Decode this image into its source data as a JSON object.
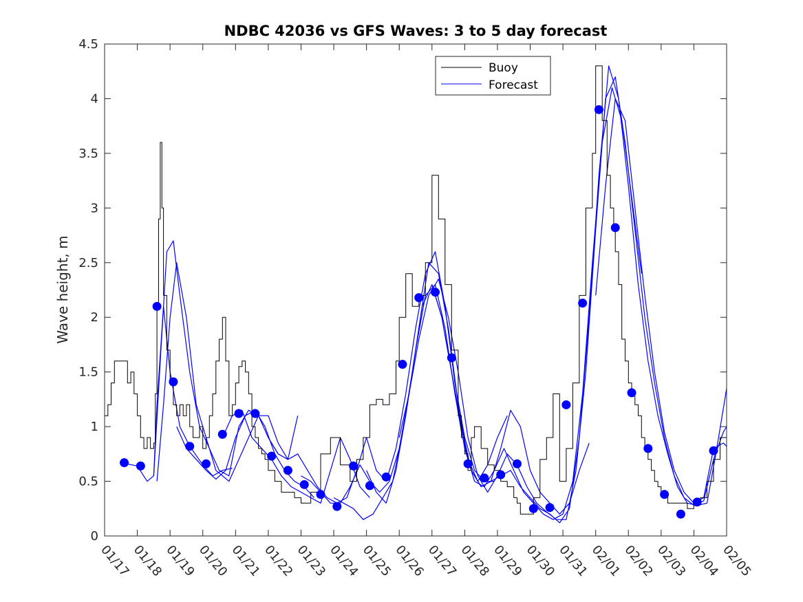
{
  "chart_data": {
    "type": "line",
    "title": "NDBC 42036 vs GFS Waves: 3 to 5 day forecast",
    "ylabel": "Wave height, m",
    "xlabel": "",
    "xlim": [
      0,
      19
    ],
    "ylim": [
      0,
      4.5
    ],
    "yticks": [
      0,
      0.5,
      1,
      1.5,
      2,
      2.5,
      3,
      3.5,
      4,
      4.5
    ],
    "ytick_labels": [
      "0",
      "0.5",
      "1",
      "1.5",
      "2",
      "2.5",
      "3",
      "3.5",
      "4",
      "4.5"
    ],
    "xticks": [
      "01/17",
      "01/18",
      "01/19",
      "01/20",
      "01/21",
      "01/22",
      "01/23",
      "01/24",
      "01/25",
      "01/26",
      "01/27",
      "01/28",
      "01/29",
      "01/30",
      "01/31",
      "02/01",
      "02/02",
      "02/03",
      "02/04",
      "02/05"
    ],
    "legend": {
      "position": "top-center",
      "entries": [
        "Buoy",
        "Forecast"
      ]
    },
    "colors": {
      "buoy": "#000000",
      "forecast": "#0000ff",
      "axis": "#262626"
    },
    "buoy": {
      "name": "Buoy",
      "x": [
        0,
        0.1,
        0.2,
        0.3,
        0.5,
        0.7,
        0.8,
        0.9,
        1.0,
        1.1,
        1.2,
        1.3,
        1.4,
        1.5,
        1.55,
        1.6,
        1.65,
        1.7,
        1.75,
        1.8,
        1.9,
        2.0,
        2.1,
        2.2,
        2.3,
        2.4,
        2.5,
        2.6,
        2.7,
        2.8,
        2.9,
        3.0,
        3.1,
        3.2,
        3.3,
        3.4,
        3.5,
        3.6,
        3.7,
        3.8,
        3.9,
        4.0,
        4.1,
        4.2,
        4.3,
        4.4,
        4.5,
        4.6,
        4.7,
        4.8,
        4.9,
        5.0,
        5.2,
        5.4,
        5.6,
        5.8,
        6.0,
        6.3,
        6.6,
        6.9,
        7.2,
        7.5,
        7.7,
        7.9,
        8.1,
        8.3,
        8.5,
        8.7,
        8.9,
        9.0,
        9.2,
        9.4,
        9.6,
        9.8,
        10.0,
        10.2,
        10.4,
        10.6,
        10.8,
        10.9,
        11.0,
        11.1,
        11.2,
        11.3,
        11.5,
        11.7,
        11.9,
        12.1,
        12.3,
        12.5,
        12.6,
        12.7,
        12.9,
        13.1,
        13.3,
        13.5,
        13.7,
        13.9,
        14.1,
        14.3,
        14.5,
        14.7,
        14.9,
        15.0,
        15.2,
        15.35,
        15.45,
        15.55,
        15.6,
        15.7,
        15.8,
        15.9,
        16.0,
        16.1,
        16.2,
        16.3,
        16.4,
        16.5,
        16.6,
        16.7,
        16.8,
        16.9,
        17.0,
        17.2,
        17.4,
        17.6,
        17.8,
        18.0,
        18.2,
        18.4,
        18.6,
        18.8,
        19.0
      ],
      "y": [
        1.1,
        1.2,
        1.4,
        1.6,
        1.6,
        1.4,
        1.5,
        1.3,
        1.1,
        0.9,
        0.8,
        0.9,
        0.8,
        0.85,
        1.3,
        2.1,
        2.9,
        3.6,
        3.0,
        2.2,
        1.7,
        1.4,
        1.2,
        1.1,
        1.2,
        1.1,
        1.2,
        1.0,
        0.9,
        0.9,
        1.0,
        0.8,
        0.9,
        1.1,
        1.3,
        1.6,
        1.8,
        2.0,
        1.6,
        1.1,
        1.2,
        1.4,
        1.55,
        1.6,
        1.5,
        1.3,
        1.0,
        0.9,
        0.8,
        0.75,
        0.7,
        0.6,
        0.5,
        0.4,
        0.4,
        0.35,
        0.3,
        0.4,
        0.75,
        0.9,
        0.65,
        0.5,
        0.7,
        0.9,
        1.2,
        1.25,
        1.2,
        1.3,
        1.6,
        2.0,
        2.4,
        2.1,
        2.2,
        2.5,
        3.3,
        2.9,
        2.3,
        1.7,
        1.1,
        0.9,
        0.75,
        0.6,
        0.9,
        1.0,
        0.8,
        0.65,
        0.6,
        0.5,
        0.45,
        0.35,
        0.3,
        0.2,
        0.2,
        0.35,
        0.7,
        0.9,
        1.3,
        0.5,
        0.8,
        1.4,
        2.2,
        3.0,
        3.5,
        4.3,
        3.8,
        3.3,
        3.0,
        2.8,
        2.6,
        2.3,
        1.8,
        1.6,
        1.4,
        1.3,
        1.2,
        1.1,
        0.9,
        0.8,
        0.7,
        0.6,
        0.5,
        0.45,
        0.4,
        0.3,
        0.3,
        0.3,
        0.25,
        0.3,
        0.35,
        0.5,
        0.7,
        0.9,
        1.0
      ]
    },
    "forecast_runs": [
      {
        "x": [
          0.5,
          1.0,
          1.3,
          1.5,
          1.6,
          1.8,
          2.0,
          2.3,
          2.6,
          3.0,
          3.3,
          3.6,
          3.9
        ],
        "y": [
          0.67,
          0.64,
          0.5,
          0.55,
          1.2,
          2.1,
          1.5,
          1.0,
          0.82,
          0.65,
          0.55,
          0.6,
          0.62
        ]
      },
      {
        "x": [
          1.5,
          1.7,
          1.9,
          2.1,
          2.3,
          2.6,
          2.9,
          3.2,
          3.5,
          3.8,
          4.1,
          4.4,
          4.7,
          5.0,
          5.3
        ],
        "y": [
          0.55,
          1.6,
          2.6,
          2.7,
          2.2,
          1.5,
          1.0,
          0.8,
          0.6,
          0.55,
          1.0,
          1.15,
          1.1,
          0.9,
          0.75
        ]
      },
      {
        "x": [
          1.6,
          1.8,
          2.0,
          2.2,
          2.5,
          2.8,
          3.1,
          3.4,
          3.8,
          4.1,
          4.4,
          4.7,
          5.0,
          5.3,
          5.6,
          5.9
        ],
        "y": [
          0.5,
          1.2,
          2.0,
          2.5,
          2.0,
          1.2,
          0.9,
          0.6,
          0.5,
          0.7,
          0.9,
          1.1,
          1.1,
          0.85,
          0.7,
          1.1
        ]
      },
      {
        "x": [
          2.2,
          2.5,
          2.8,
          3.1,
          3.4,
          3.7,
          4.0,
          4.3,
          4.6,
          4.9,
          5.2,
          5.5,
          5.8,
          6.1,
          6.4
        ],
        "y": [
          1.0,
          0.8,
          0.7,
          0.6,
          0.52,
          0.6,
          0.9,
          1.1,
          1.15,
          1.0,
          0.75,
          0.6,
          0.5,
          0.45,
          0.35
        ]
      },
      {
        "x": [
          3.6,
          3.9,
          4.2,
          4.5,
          4.8,
          5.1,
          5.4,
          5.7,
          6.0,
          6.3,
          6.6,
          6.9,
          7.2,
          7.5,
          7.8,
          8.1
        ],
        "y": [
          0.9,
          1.1,
          1.15,
          0.9,
          0.8,
          0.7,
          0.55,
          0.45,
          0.4,
          0.35,
          0.3,
          0.6,
          0.9,
          0.7,
          0.45,
          0.35
        ]
      },
      {
        "x": [
          5.0,
          5.3,
          5.6,
          5.9,
          6.2,
          6.5,
          6.8,
          7.1,
          7.4,
          7.7,
          8.0,
          8.3,
          8.6,
          8.9,
          9.2,
          9.5,
          9.8,
          10.1,
          10.4,
          10.7,
          11.0,
          11.3,
          11.6,
          11.9
        ],
        "y": [
          0.9,
          0.75,
          0.7,
          0.75,
          0.6,
          0.45,
          0.35,
          0.3,
          0.35,
          0.6,
          0.9,
          0.6,
          0.5,
          0.8,
          1.3,
          1.9,
          2.4,
          2.6,
          2.1,
          1.4,
          0.9,
          0.6,
          0.5,
          0.5
        ]
      },
      {
        "x": [
          6.0,
          6.3,
          6.6,
          6.9,
          7.2,
          7.5,
          7.8,
          8.1,
          8.4,
          8.7,
          9.0,
          9.3,
          9.6,
          9.9,
          10.2,
          10.5,
          10.8,
          11.1,
          11.4,
          11.7,
          12.0,
          12.3
        ],
        "y": [
          0.55,
          0.5,
          0.4,
          0.3,
          0.3,
          0.45,
          0.65,
          0.5,
          0.4,
          0.5,
          0.8,
          1.3,
          1.9,
          2.5,
          2.4,
          1.9,
          1.2,
          0.7,
          0.5,
          0.65,
          0.9,
          1.1
        ]
      },
      {
        "x": [
          7.0,
          7.3,
          7.6,
          7.9,
          8.2,
          8.5,
          8.8,
          9.1,
          9.4,
          9.7,
          10.0,
          10.3,
          10.6,
          10.9,
          11.2,
          11.5,
          11.8,
          12.1,
          12.4,
          12.7,
          13.0,
          13.3,
          13.6,
          13.9,
          14.2,
          14.5,
          14.8
        ],
        "y": [
          0.35,
          0.3,
          0.25,
          0.15,
          0.2,
          0.35,
          0.5,
          0.95,
          1.5,
          2.1,
          2.3,
          2.0,
          1.5,
          1.0,
          0.6,
          0.45,
          0.5,
          0.8,
          1.15,
          1.0,
          0.6,
          0.4,
          0.3,
          0.2,
          0.3,
          0.6,
          0.85
        ]
      },
      {
        "x": [
          8.0,
          8.3,
          8.6,
          8.9,
          9.2,
          9.5,
          9.8,
          10.1,
          10.4,
          10.7,
          11.0,
          11.3,
          11.6,
          11.9,
          12.2,
          12.5,
          12.8,
          13.1,
          13.4,
          13.7,
          14.0,
          14.3,
          14.6,
          14.9,
          15.2,
          15.5,
          15.8,
          16.1,
          16.4
        ],
        "y": [
          0.6,
          0.4,
          0.3,
          0.6,
          1.1,
          1.7,
          2.2,
          2.3,
          1.9,
          1.3,
          0.8,
          0.5,
          0.45,
          0.6,
          0.8,
          0.6,
          0.4,
          0.3,
          0.2,
          0.15,
          0.2,
          0.5,
          1.3,
          2.5,
          3.6,
          4.1,
          3.8,
          3.1,
          2.4
        ]
      },
      {
        "x": [
          9.0,
          9.3,
          9.6,
          9.9,
          10.2,
          10.5,
          10.8,
          11.1,
          11.4,
          11.7,
          12.0,
          12.3,
          12.6,
          12.9,
          13.2,
          13.5,
          13.8,
          14.1,
          14.4,
          14.7,
          15.0,
          15.3,
          15.6,
          15.9,
          16.2,
          16.5,
          16.8,
          17.1,
          17.4,
          17.7,
          18.0,
          18.3,
          18.6,
          18.9,
          19.0
        ],
        "y": [
          0.9,
          1.3,
          1.8,
          2.2,
          2.35,
          2.0,
          1.5,
          0.9,
          0.55,
          0.4,
          0.55,
          0.75,
          0.65,
          0.45,
          0.3,
          0.22,
          0.15,
          0.15,
          0.6,
          1.5,
          2.8,
          4.0,
          4.2,
          3.6,
          2.8,
          2.0,
          1.4,
          0.9,
          0.55,
          0.35,
          0.28,
          0.32,
          0.7,
          0.95,
          1.0
        ]
      },
      {
        "x": [
          10.0,
          10.3,
          10.6,
          10.9,
          11.2,
          11.5,
          11.8,
          12.1,
          12.4,
          12.7,
          13.0,
          13.3,
          13.6,
          13.9,
          14.2,
          14.5,
          14.8,
          15.1,
          15.4,
          15.7,
          16.0,
          16.3,
          16.6,
          16.9,
          17.2,
          17.5,
          17.8,
          18.1,
          18.4,
          18.7,
          19.0
        ],
        "y": [
          2.3,
          2.0,
          1.5,
          0.95,
          0.6,
          0.45,
          0.5,
          0.55,
          0.6,
          0.45,
          0.35,
          0.25,
          0.2,
          0.12,
          0.25,
          0.9,
          2.0,
          3.3,
          4.3,
          4.0,
          3.2,
          2.3,
          1.6,
          1.1,
          0.75,
          0.45,
          0.3,
          0.28,
          0.3,
          0.8,
          1.35
        ]
      },
      {
        "x": [
          15.0,
          15.3,
          15.6,
          15.9,
          16.2,
          16.5,
          16.8,
          17.1,
          17.4,
          17.7,
          18.0,
          18.3,
          18.6,
          18.9,
          19.0
        ],
        "y": [
          2.2,
          3.2,
          4.0,
          3.8,
          3.0,
          2.2,
          1.5,
          0.95,
          0.6,
          0.4,
          0.3,
          0.35,
          0.8,
          0.85,
          0.82
        ]
      }
    ],
    "forecast_points": {
      "x": [
        0.6,
        1.1,
        1.6,
        2.1,
        2.6,
        3.1,
        3.6,
        4.1,
        4.6,
        5.1,
        5.6,
        6.1,
        6.6,
        7.1,
        7.6,
        8.1,
        8.6,
        9.1,
        9.6,
        10.1,
        10.6,
        11.1,
        11.6,
        12.1,
        12.6,
        13.1,
        13.6,
        14.1,
        14.6,
        15.1,
        15.6,
        16.1,
        16.6,
        17.1,
        17.6,
        18.1,
        18.6
      ],
      "y": [
        0.67,
        0.64,
        2.1,
        1.41,
        0.82,
        0.66,
        0.93,
        1.12,
        1.12,
        0.73,
        0.6,
        0.47,
        0.38,
        0.27,
        0.64,
        0.46,
        0.54,
        1.57,
        2.18,
        2.23,
        1.63,
        0.66,
        0.53,
        0.56,
        0.66,
        0.25,
        0.26,
        1.2,
        2.13,
        3.9,
        2.82,
        1.31,
        0.8,
        0.38,
        0.2,
        0.31,
        0.78
      ]
    }
  }
}
